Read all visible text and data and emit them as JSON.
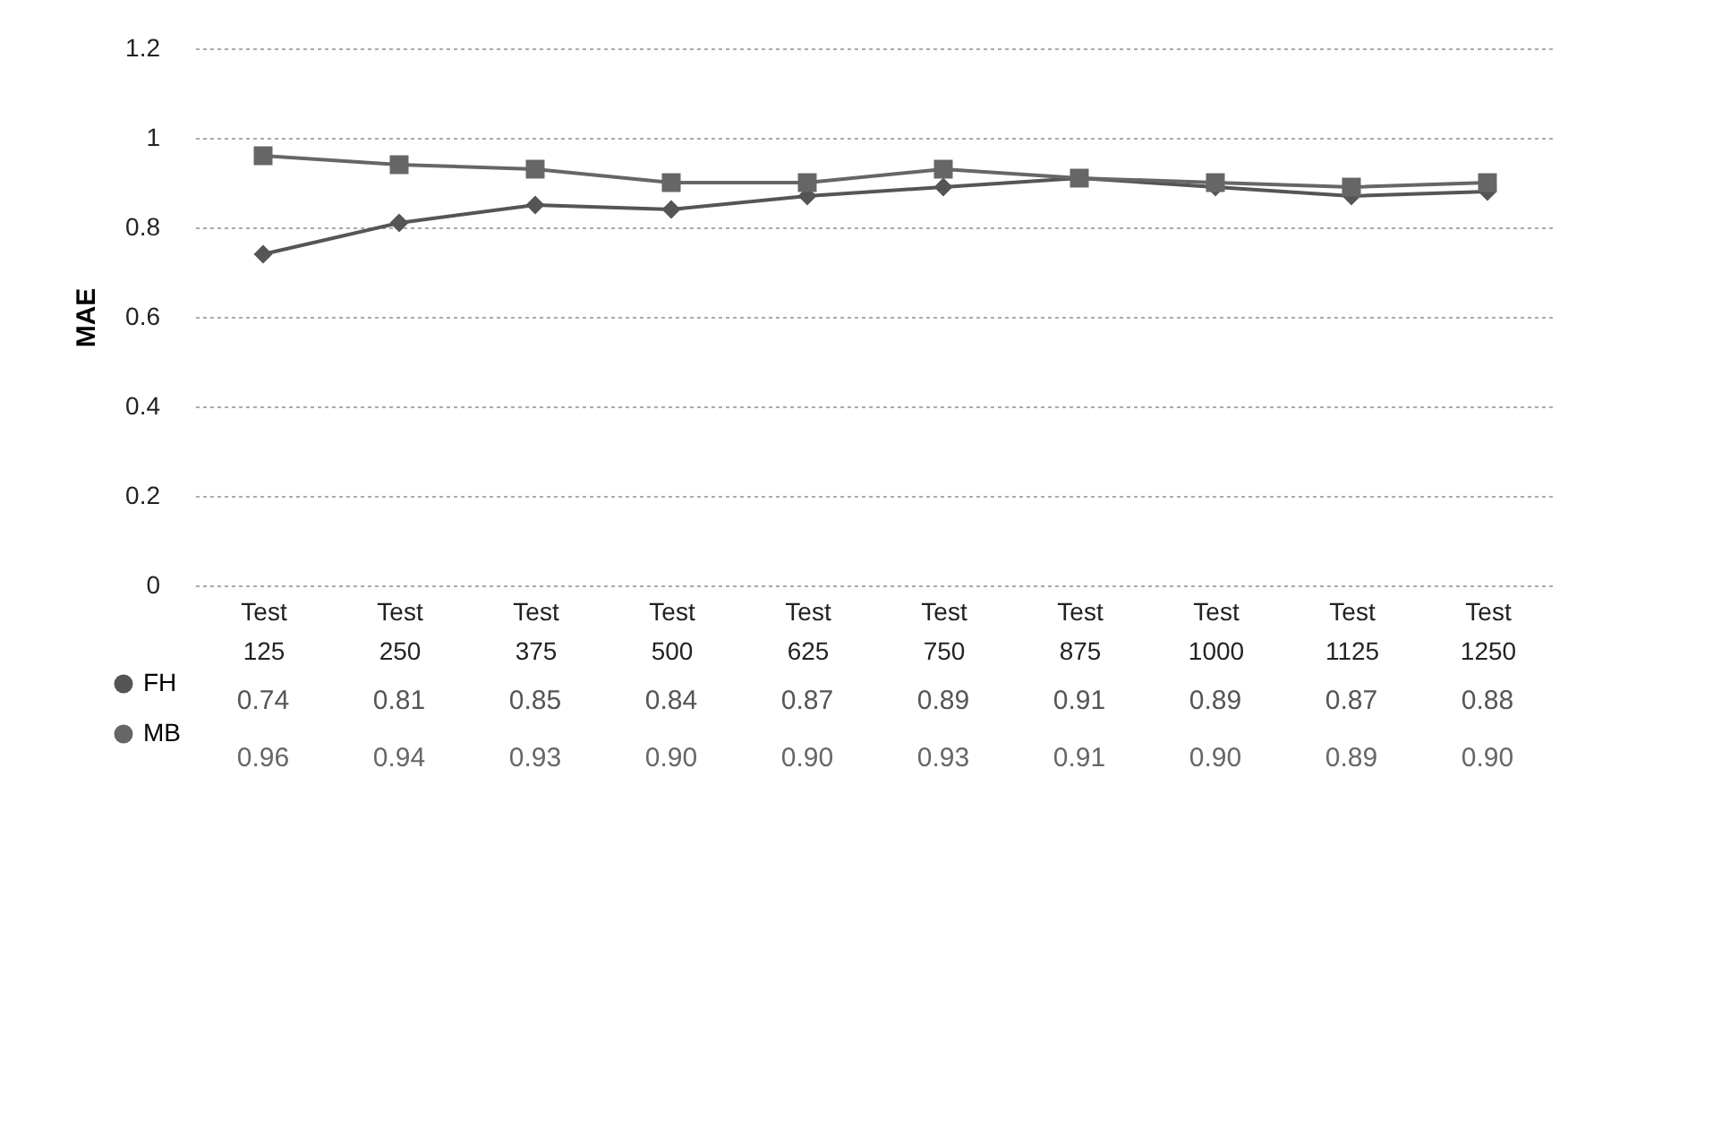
{
  "chart_data": {
    "type": "line",
    "ylabel": "MAE",
    "categories": [
      "Test 125",
      "Test 250",
      "Test 375",
      "Test 500",
      "Test 625",
      "Test 750",
      "Test 875",
      "Test 1000",
      "Test 1125",
      "Test 1250"
    ],
    "ylim": [
      0,
      1.2
    ],
    "yticks": [
      0,
      0.2,
      0.4,
      0.6,
      0.8,
      1,
      1.2
    ],
    "grid": "y",
    "legend": "bottom left",
    "series": [
      {
        "name": "FH",
        "color": "#555555",
        "marker": "diamond",
        "values": [
          0.74,
          0.81,
          0.85,
          0.84,
          0.87,
          0.89,
          0.91,
          0.89,
          0.87,
          0.88
        ],
        "value_labels": [
          "0.74",
          "0.81",
          "0.85",
          "0.84",
          "0.87",
          "0.89",
          "0.91",
          "0.89",
          "0.87",
          "0.88"
        ]
      },
      {
        "name": "MB",
        "color": "#666666",
        "marker": "square",
        "values": [
          0.96,
          0.94,
          0.93,
          0.9,
          0.9,
          0.93,
          0.91,
          0.9,
          0.89,
          0.9
        ],
        "value_labels": [
          "0.96",
          "0.94",
          "0.93",
          "0.90",
          "0.90",
          "0.93",
          "0.91",
          "0.90",
          "0.89",
          "0.90"
        ]
      }
    ]
  }
}
